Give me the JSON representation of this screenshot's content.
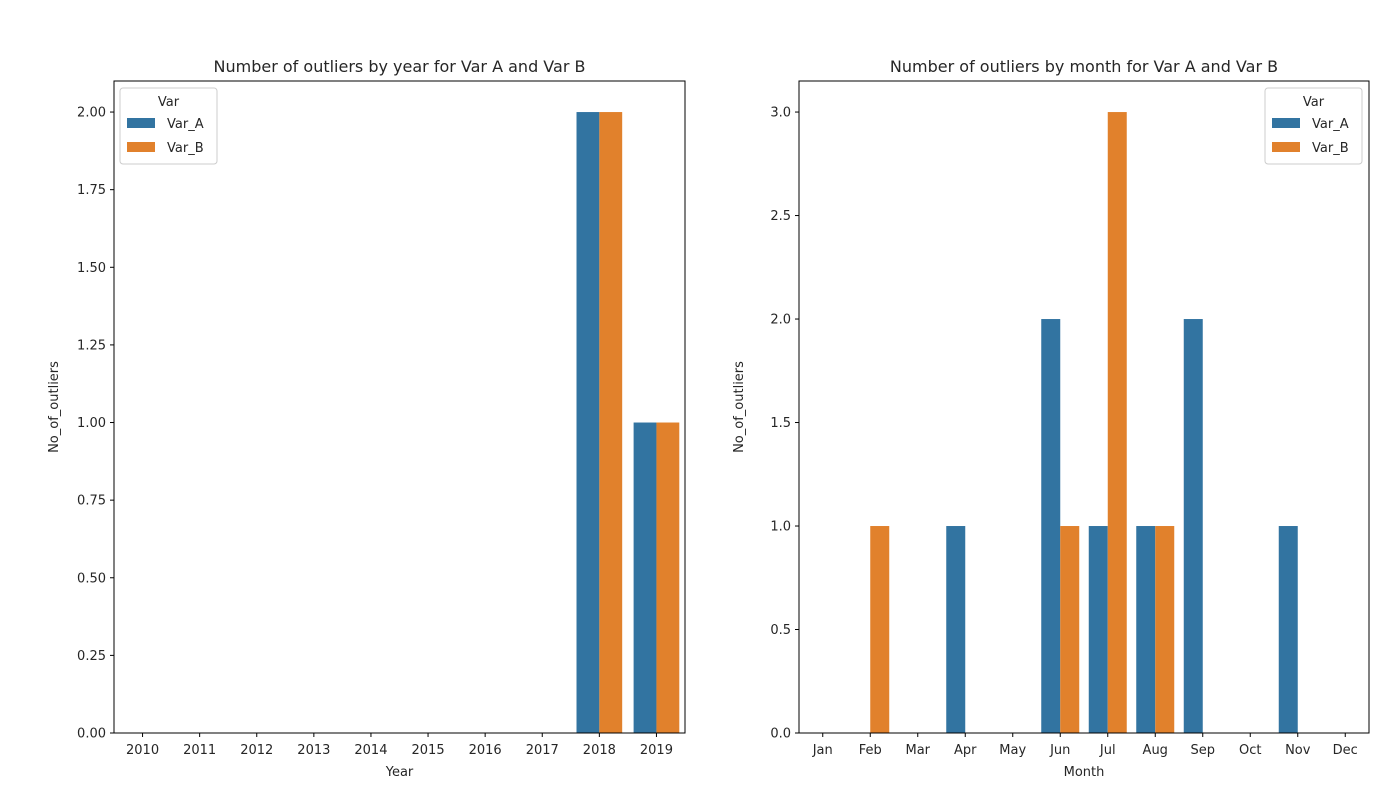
{
  "colors": {
    "Var_A": "#3274a1",
    "Var_B": "#e1812c"
  },
  "chart_data": [
    {
      "type": "bar",
      "title": "Number of outliers by year for Var A and Var B",
      "xlabel": "Year",
      "ylabel": "No_of_outliers",
      "categories": [
        "2010",
        "2011",
        "2012",
        "2013",
        "2014",
        "2015",
        "2016",
        "2017",
        "2018",
        "2019"
      ],
      "series": [
        {
          "name": "Var_A",
          "values": [
            0,
            0,
            0,
            0,
            0,
            0,
            0,
            0,
            2,
            1
          ]
        },
        {
          "name": "Var_B",
          "values": [
            0,
            0,
            0,
            0,
            0,
            0,
            0,
            0,
            2,
            1
          ]
        }
      ],
      "ylim": [
        0,
        2.1
      ],
      "yticks": [
        "0.00",
        "0.25",
        "0.50",
        "0.75",
        "1.00",
        "1.25",
        "1.50",
        "1.75",
        "2.00"
      ],
      "legend_title": "Var",
      "legend_position": "top-left",
      "grid": false
    },
    {
      "type": "bar",
      "title": "Number of outliers by month for Var A and Var B",
      "xlabel": "Month",
      "ylabel": "No_of_outliers",
      "categories": [
        "Jan",
        "Feb",
        "Mar",
        "Apr",
        "May",
        "Jun",
        "Jul",
        "Aug",
        "Sep",
        "Oct",
        "Nov",
        "Dec"
      ],
      "series": [
        {
          "name": "Var_A",
          "values": [
            0,
            0,
            0,
            1,
            0,
            2,
            1,
            1,
            2,
            0,
            1,
            0
          ]
        },
        {
          "name": "Var_B",
          "values": [
            0,
            1,
            0,
            0,
            0,
            1,
            3,
            1,
            0,
            0,
            0,
            0
          ]
        }
      ],
      "ylim": [
        0,
        3.15
      ],
      "yticks": [
        "0.0",
        "0.5",
        "1.0",
        "1.5",
        "2.0",
        "2.5",
        "3.0"
      ],
      "legend_title": "Var",
      "legend_position": "top-right",
      "grid": false
    }
  ]
}
